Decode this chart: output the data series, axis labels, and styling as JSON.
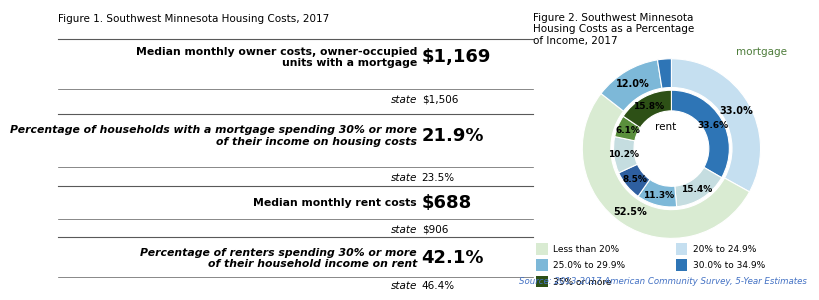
{
  "fig1_title": "Figure 1. Southwest Minnesota Housing Costs, 2017",
  "rows": [
    {
      "label": "Median monthly owner costs, owner-occupied\nunits with a mortgage",
      "value": "$1,169",
      "state_label": "state",
      "state_value": "$1,506",
      "italic_label": false
    },
    {
      "label": "Percentage of households with a mortgage spending 30% or more\nof their income on housing costs",
      "value": "21.9%",
      "state_label": "state",
      "state_value": "23.5%",
      "italic_label": true
    },
    {
      "label": "Median monthly rent costs",
      "value": "$688",
      "state_label": "state",
      "state_value": "$906",
      "italic_label": false
    },
    {
      "label": "Percentage of renters spending 30% or more\nof their household income on rent",
      "value": "42.1%",
      "state_label": "state",
      "state_value": "46.4%",
      "italic_label": true
    }
  ],
  "fig2_title": "Figure 2. Southwest Minnesota\nHousing Costs as a Percentage\nof Income, 2017",
  "outer_wedge_vals": [
    33.0,
    52.5,
    12.0,
    2.5
  ],
  "outer_wedge_colors": [
    "#c5dff0",
    "#d9ebd2",
    "#7db8d8",
    "#2e75b6"
  ],
  "outer_labels": [
    "33.0%",
    "52.5%",
    "12.0%",
    ""
  ],
  "inner_wedge_vals": [
    33.6,
    15.4,
    11.3,
    8.5,
    10.2,
    6.1,
    15.8
  ],
  "inner_wedge_colors": [
    "#2e75b6",
    "#c5dde0",
    "#7db8d8",
    "#2e5fa0",
    "#c5dde0",
    "#5a8f3c",
    "#2d5016"
  ],
  "inner_labels": [
    "33.6%",
    "15.4%",
    "11.3%",
    "8.5%",
    "10.2%",
    "6.1%",
    "15.8%"
  ],
  "mortgage_label": "mortgage",
  "rent_label": "rent",
  "legend_items": [
    {
      "label": "Less than 20%",
      "color": "#d9ebd2"
    },
    {
      "label": "20% to 24.9%",
      "color": "#c5dff0"
    },
    {
      "label": "25.0% to 29.9%",
      "color": "#7db8d8"
    },
    {
      "label": "30.0% to 34.9%",
      "color": "#2e75b6"
    },
    {
      "label": "35% or more",
      "color": "#2d5016"
    }
  ],
  "source_text": "Source: 2013-2017 American Community Survey, 5-Year Estimates",
  "source_color": "#4472c4",
  "divider_color": "#595959",
  "bg_color": "#ffffff",
  "mortgage_color": "#4d7c3a",
  "divx": 0.76
}
